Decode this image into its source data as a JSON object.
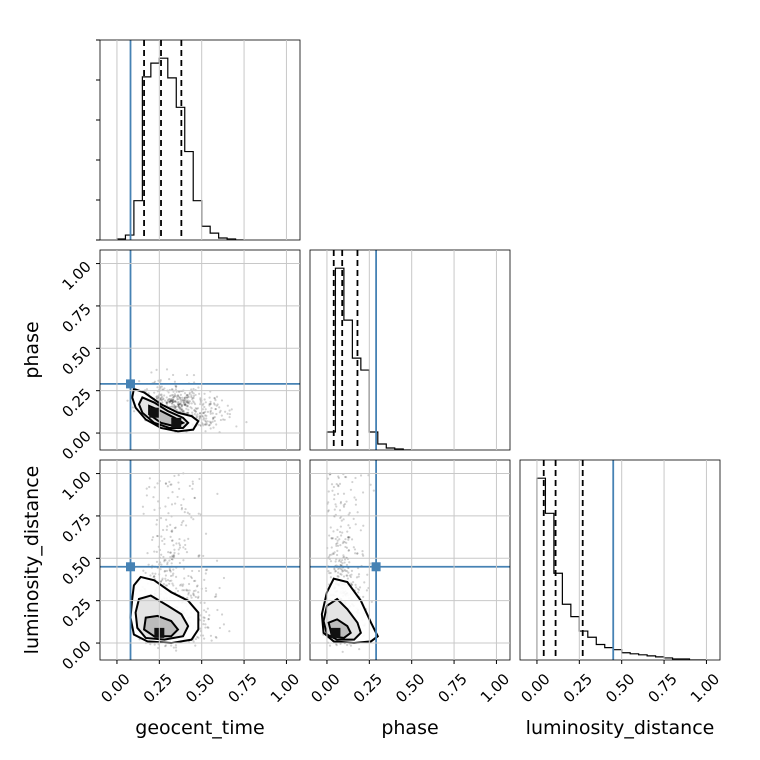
{
  "chart_data": {
    "type": "corner",
    "parameters": [
      "geocent_time",
      "phase",
      "luminosity_distance"
    ],
    "ticks": [
      0.0,
      0.25,
      0.5,
      0.75,
      1.0
    ],
    "tick_labels": [
      "0.00",
      "0.25",
      "0.50",
      "0.75",
      "1.00"
    ],
    "range": [
      -0.1,
      1.08
    ],
    "grid": true,
    "truth_color": "#4682b4",
    "truths": {
      "geocent_time": 0.08,
      "phase": 0.29,
      "luminosity_distance": 0.45
    },
    "quantiles": {
      "geocent_time": [
        0.16,
        0.26,
        0.38
      ],
      "phase": [
        0.04,
        0.09,
        0.18
      ],
      "luminosity_distance": [
        0.04,
        0.11,
        0.27
      ]
    },
    "histograms": {
      "geocent_time": {
        "edges": [
          0.0,
          0.05,
          0.1,
          0.15,
          0.2,
          0.25,
          0.3,
          0.35,
          0.4,
          0.45,
          0.5,
          0.55,
          0.6,
          0.65,
          0.7,
          0.75
        ],
        "counts": [
          1,
          5,
          40,
          166,
          180,
          185,
          165,
          135,
          90,
          40,
          14,
          7,
          2,
          1,
          0
        ]
      },
      "phase": {
        "edges": [
          0.0,
          0.05,
          0.1,
          0.15,
          0.2,
          0.25,
          0.3,
          0.35,
          0.4,
          0.45,
          0.5
        ],
        "counts": [
          18,
          182,
          130,
          92,
          80,
          18,
          6,
          2,
          1,
          0
        ]
      },
      "luminosity_distance": {
        "edges": [
          0.0,
          0.05,
          0.1,
          0.15,
          0.2,
          0.25,
          0.3,
          0.35,
          0.4,
          0.45,
          0.5,
          0.55,
          0.6,
          0.65,
          0.7,
          0.75,
          0.8,
          0.85,
          0.9,
          0.95,
          1.0
        ],
        "counts": [
          176,
          142,
          84,
          54,
          42,
          28,
          22,
          15,
          12,
          10,
          7,
          6,
          5,
          4,
          3,
          2,
          1,
          1,
          0,
          0
        ]
      }
    },
    "pairs": [
      {
        "x": "geocent_time",
        "y": "phase",
        "density_peaks": [
          [
            0.22,
            0.12
          ],
          [
            0.35,
            0.06
          ]
        ],
        "contours": [
          [
            [
              0.1,
              0.26
            ],
            [
              0.16,
              0.24
            ],
            [
              0.26,
              0.17
            ],
            [
              0.36,
              0.12
            ],
            [
              0.44,
              0.1
            ],
            [
              0.48,
              0.07
            ],
            [
              0.45,
              0.02
            ],
            [
              0.36,
              0.01
            ],
            [
              0.26,
              0.03
            ],
            [
              0.17,
              0.08
            ],
            [
              0.11,
              0.15
            ],
            [
              0.09,
              0.21
            ]
          ],
          [
            [
              0.15,
              0.21
            ],
            [
              0.22,
              0.18
            ],
            [
              0.3,
              0.13
            ],
            [
              0.39,
              0.09
            ],
            [
              0.42,
              0.06
            ],
            [
              0.39,
              0.03
            ],
            [
              0.31,
              0.03
            ],
            [
              0.22,
              0.06
            ],
            [
              0.15,
              0.12
            ],
            [
              0.13,
              0.17
            ]
          ],
          [
            [
              0.19,
              0.16
            ],
            [
              0.26,
              0.13
            ],
            [
              0.34,
              0.09
            ],
            [
              0.39,
              0.06
            ],
            [
              0.34,
              0.04
            ],
            [
              0.26,
              0.06
            ],
            [
              0.19,
              0.11
            ]
          ]
        ]
      },
      {
        "x": "geocent_time",
        "y": "luminosity_distance",
        "density_peaks": [
          [
            0.25,
            0.06
          ]
        ],
        "contours": [
          [
            [
              0.1,
              0.34
            ],
            [
              0.14,
              0.39
            ],
            [
              0.22,
              0.37
            ],
            [
              0.32,
              0.3
            ],
            [
              0.42,
              0.25
            ],
            [
              0.48,
              0.18
            ],
            [
              0.48,
              0.08
            ],
            [
              0.44,
              0.02
            ],
            [
              0.32,
              0.0
            ],
            [
              0.18,
              0.01
            ],
            [
              0.1,
              0.05
            ],
            [
              0.08,
              0.15
            ],
            [
              0.09,
              0.26
            ]
          ],
          [
            [
              0.13,
              0.26
            ],
            [
              0.2,
              0.28
            ],
            [
              0.3,
              0.22
            ],
            [
              0.38,
              0.17
            ],
            [
              0.42,
              0.1
            ],
            [
              0.39,
              0.04
            ],
            [
              0.28,
              0.02
            ],
            [
              0.17,
              0.03
            ],
            [
              0.12,
              0.09
            ],
            [
              0.11,
              0.18
            ]
          ],
          [
            [
              0.17,
              0.15
            ],
            [
              0.24,
              0.16
            ],
            [
              0.32,
              0.13
            ],
            [
              0.36,
              0.08
            ],
            [
              0.32,
              0.04
            ],
            [
              0.22,
              0.04
            ],
            [
              0.16,
              0.08
            ]
          ]
        ]
      },
      {
        "x": "phase",
        "y": "luminosity_distance",
        "density_peaks": [
          [
            0.05,
            0.06
          ]
        ],
        "contours": [
          [
            [
              0.0,
              0.3
            ],
            [
              0.04,
              0.38
            ],
            [
              0.12,
              0.36
            ],
            [
              0.2,
              0.25
            ],
            [
              0.26,
              0.12
            ],
            [
              0.3,
              0.04
            ],
            [
              0.26,
              0.01
            ],
            [
              0.16,
              0.0
            ],
            [
              0.04,
              0.01
            ],
            [
              -0.02,
              0.06
            ],
            [
              -0.03,
              0.17
            ]
          ],
          [
            [
              0.0,
              0.22
            ],
            [
              0.06,
              0.26
            ],
            [
              0.12,
              0.2
            ],
            [
              0.18,
              0.12
            ],
            [
              0.2,
              0.06
            ],
            [
              0.16,
              0.02
            ],
            [
              0.06,
              0.02
            ],
            [
              0.0,
              0.05
            ],
            [
              -0.02,
              0.13
            ]
          ],
          [
            [
              0.01,
              0.12
            ],
            [
              0.06,
              0.14
            ],
            [
              0.12,
              0.1
            ],
            [
              0.14,
              0.06
            ],
            [
              0.1,
              0.03
            ],
            [
              0.03,
              0.04
            ]
          ]
        ]
      }
    ]
  }
}
